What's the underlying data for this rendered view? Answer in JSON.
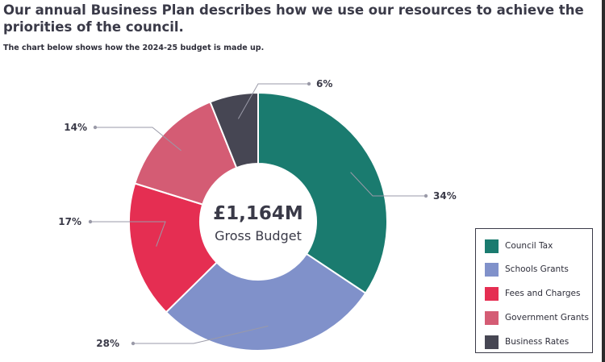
{
  "header": {
    "headline": "Our annual Business Plan describes how we use our resources to achieve the priorities of the council.",
    "subline": "The chart below shows how the 2024-25 budget is made up."
  },
  "chart_data": {
    "type": "pie",
    "variant": "donut",
    "center_value": "£1,164M",
    "center_label": "Gross Budget",
    "legend_position": "bottom-right",
    "slices": [
      {
        "name": "Council Tax",
        "value": 34,
        "label": "34%",
        "color": "#1a7b6f"
      },
      {
        "name": "Schools Grants",
        "value": 28,
        "label": "28%",
        "color": "#8091ca"
      },
      {
        "name": "Fees and Charges",
        "value": 17,
        "label": "17%",
        "color": "#e52e52"
      },
      {
        "name": "Government Grants",
        "value": 14,
        "label": "14%",
        "color": "#d45c74"
      },
      {
        "name": "Business Rates",
        "value": 6,
        "label": "6%",
        "color": "#464653"
      }
    ]
  }
}
